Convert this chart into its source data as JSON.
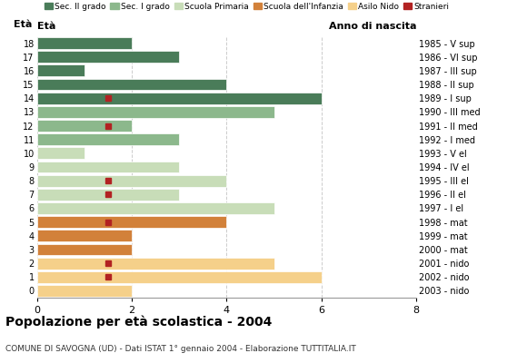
{
  "ages": [
    18,
    17,
    16,
    15,
    14,
    13,
    12,
    11,
    10,
    9,
    8,
    7,
    6,
    5,
    4,
    3,
    2,
    1,
    0
  ],
  "birth_years": [
    "1985 - V sup",
    "1986 - VI sup",
    "1987 - III sup",
    "1988 - II sup",
    "1989 - I sup",
    "1990 - III med",
    "1991 - II med",
    "1992 - I med",
    "1993 - V el",
    "1994 - IV el",
    "1995 - III el",
    "1996 - II el",
    "1997 - I el",
    "1998 - mat",
    "1999 - mat",
    "2000 - mat",
    "2001 - nido",
    "2002 - nido",
    "2003 - nido"
  ],
  "values": [
    2,
    3,
    1,
    4,
    6,
    5,
    2,
    3,
    1,
    3,
    4,
    3,
    5,
    4,
    2,
    2,
    5,
    6,
    2
  ],
  "stranieri_positions": [
    14,
    12,
    8,
    7,
    5,
    2,
    1
  ],
  "stranieri_x_vals": [
    1.5,
    1.5,
    1.5,
    1.5,
    1.5,
    1.5,
    1.5
  ],
  "colors": {
    "sec2": "#4a7c59",
    "sec1": "#8cb88c",
    "primaria": "#c8ddb8",
    "infanzia": "#d2813a",
    "nido": "#f5d08a",
    "stranieri": "#b22222"
  },
  "legend_labels": [
    "Sec. II grado",
    "Sec. I grado",
    "Scuola Primaria",
    "Scuola dell'Infanzia",
    "Asilo Nido",
    "Stranieri"
  ],
  "title": "Popolazione per età scolastica - 2004",
  "subtitle": "COMUNE DI SAVOGNA (UD) - Dati ISTAT 1° gennaio 2004 - Elaborazione TUTTITALIA.IT",
  "ylabel_left": "Età",
  "ylabel_right": "Anno di nascita",
  "xlim": [
    0,
    8
  ],
  "background_color": "#ffffff",
  "grid_color": "#cccccc"
}
